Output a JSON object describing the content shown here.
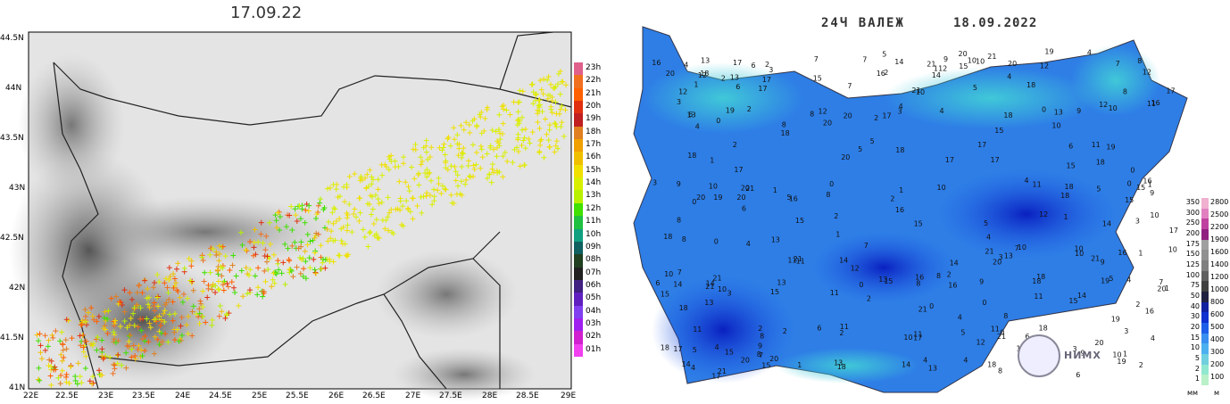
{
  "left_map": {
    "title": "17.09.22",
    "lat_labels": [
      "44.5N",
      "44N",
      "43.5N",
      "43N",
      "42.5N",
      "42N",
      "41.5N",
      "41N"
    ],
    "lon_labels": [
      "22E",
      "22.5E",
      "23E",
      "23.5E",
      "24E",
      "24.5E",
      "25E",
      "25.5E",
      "26E",
      "26.5E",
      "27E",
      "27.5E",
      "28E",
      "28.5E",
      "29E"
    ],
    "legend": {
      "labels": [
        "23h",
        "22h",
        "21h",
        "20h",
        "19h",
        "18h",
        "17h",
        "16h",
        "15h",
        "14h",
        "13h",
        "12h",
        "11h",
        "10h",
        "09h",
        "08h",
        "07h",
        "06h",
        "05h",
        "04h",
        "03h",
        "02h",
        "01h"
      ],
      "colors": [
        "#e0608c",
        "#f07020",
        "#ff6000",
        "#e03010",
        "#c02020",
        "#e08020",
        "#f0a000",
        "#f0c000",
        "#f0e000",
        "#d8f000",
        "#b8f000",
        "#40e000",
        "#20c040",
        "#10a080",
        "#106060",
        "#204020",
        "#202020",
        "#402080",
        "#6020c0",
        "#8040f0",
        "#a020f0",
        "#d020d0",
        "#f040f0"
      ]
    }
  },
  "right_map": {
    "title": "24Ч ВАЛЕЖ",
    "date": "18.09.2022",
    "legend_left": [
      "350",
      "300",
      "250",
      "200",
      "175",
      "150",
      "125",
      "100",
      "75",
      "50",
      "40",
      "30",
      "20",
      "15",
      "10",
      "5",
      "2",
      "1"
    ],
    "legend_right": [
      "2800",
      "2500",
      "2200",
      "1900",
      "1600",
      "1400",
      "1200",
      "1000",
      "800",
      "600",
      "500",
      "400",
      "300",
      "200",
      "100"
    ],
    "legend_units": [
      "мм",
      "м"
    ],
    "logo_text": "НИМХ"
  }
}
